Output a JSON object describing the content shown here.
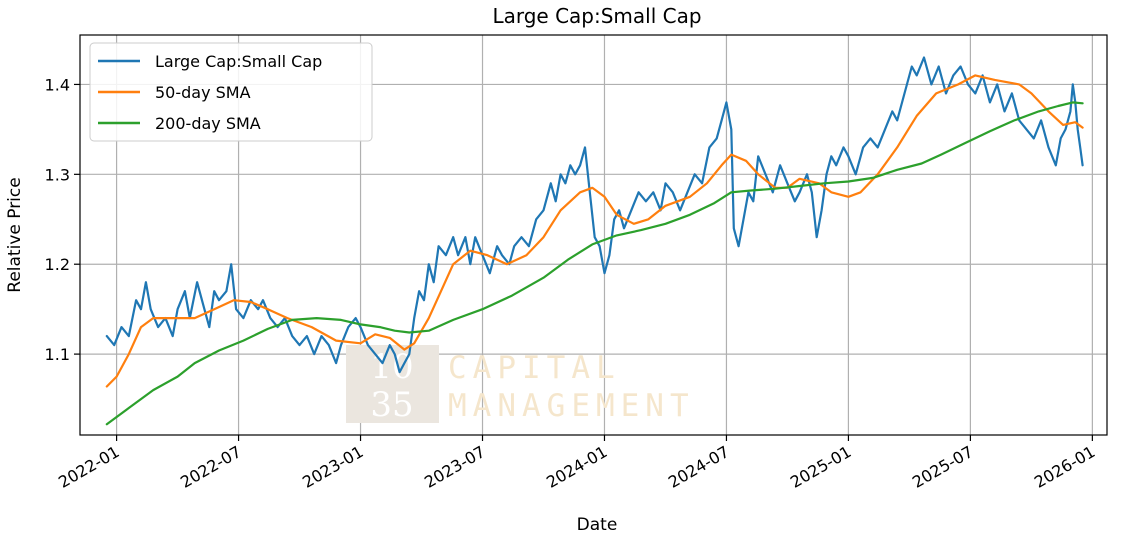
{
  "chart_data": {
    "type": "line",
    "title": "Large Cap:Small Cap",
    "xlabel": "Date",
    "ylabel": "Relative Price",
    "xlim": [
      2021.85,
      2026.06
    ],
    "ylim": [
      1.01,
      1.455
    ],
    "x_ticks": [
      {
        "label": "2022-01",
        "value": 2022.0
      },
      {
        "label": "2022-07",
        "value": 2022.5
      },
      {
        "label": "2023-01",
        "value": 2023.0
      },
      {
        "label": "2023-07",
        "value": 2023.5
      },
      {
        "label": "2024-01",
        "value": 2024.0
      },
      {
        "label": "2024-07",
        "value": 2024.5
      },
      {
        "label": "2025-01",
        "value": 2025.0
      },
      {
        "label": "2025-07",
        "value": 2025.5
      },
      {
        "label": "2026-01",
        "value": 2026.0
      }
    ],
    "y_ticks": [
      {
        "label": "1.1",
        "value": 1.1
      },
      {
        "label": "1.2",
        "value": 1.2
      },
      {
        "label": "1.3",
        "value": 1.3
      },
      {
        "label": "1.4",
        "value": 1.4
      }
    ],
    "grid": true,
    "legend_position": "top-left",
    "series": [
      {
        "name": "Large Cap:Small Cap",
        "color": "#1f77b4",
        "points": [
          [
            2021.96,
            1.12
          ],
          [
            2021.99,
            1.11
          ],
          [
            2022.02,
            1.13
          ],
          [
            2022.05,
            1.12
          ],
          [
            2022.08,
            1.16
          ],
          [
            2022.1,
            1.15
          ],
          [
            2022.12,
            1.18
          ],
          [
            2022.14,
            1.15
          ],
          [
            2022.17,
            1.13
          ],
          [
            2022.2,
            1.14
          ],
          [
            2022.23,
            1.12
          ],
          [
            2022.25,
            1.15
          ],
          [
            2022.28,
            1.17
          ],
          [
            2022.3,
            1.14
          ],
          [
            2022.33,
            1.18
          ],
          [
            2022.36,
            1.15
          ],
          [
            2022.38,
            1.13
          ],
          [
            2022.4,
            1.17
          ],
          [
            2022.42,
            1.16
          ],
          [
            2022.45,
            1.17
          ],
          [
            2022.47,
            1.2
          ],
          [
            2022.49,
            1.15
          ],
          [
            2022.52,
            1.14
          ],
          [
            2022.55,
            1.16
          ],
          [
            2022.58,
            1.15
          ],
          [
            2022.6,
            1.16
          ],
          [
            2022.63,
            1.14
          ],
          [
            2022.66,
            1.13
          ],
          [
            2022.69,
            1.14
          ],
          [
            2022.72,
            1.12
          ],
          [
            2022.75,
            1.11
          ],
          [
            2022.78,
            1.12
          ],
          [
            2022.81,
            1.1
          ],
          [
            2022.84,
            1.12
          ],
          [
            2022.87,
            1.11
          ],
          [
            2022.9,
            1.09
          ],
          [
            2022.92,
            1.11
          ],
          [
            2022.95,
            1.13
          ],
          [
            2022.98,
            1.14
          ],
          [
            2023.0,
            1.13
          ],
          [
            2023.03,
            1.11
          ],
          [
            2023.06,
            1.1
          ],
          [
            2023.09,
            1.09
          ],
          [
            2023.12,
            1.11
          ],
          [
            2023.14,
            1.1
          ],
          [
            2023.16,
            1.08
          ],
          [
            2023.18,
            1.09
          ],
          [
            2023.2,
            1.1
          ],
          [
            2023.22,
            1.14
          ],
          [
            2023.24,
            1.17
          ],
          [
            2023.26,
            1.16
          ],
          [
            2023.28,
            1.2
          ],
          [
            2023.3,
            1.18
          ],
          [
            2023.32,
            1.22
          ],
          [
            2023.35,
            1.21
          ],
          [
            2023.38,
            1.23
          ],
          [
            2023.4,
            1.21
          ],
          [
            2023.43,
            1.23
          ],
          [
            2023.45,
            1.2
          ],
          [
            2023.47,
            1.23
          ],
          [
            2023.5,
            1.21
          ],
          [
            2023.53,
            1.19
          ],
          [
            2023.56,
            1.22
          ],
          [
            2023.58,
            1.21
          ],
          [
            2023.61,
            1.2
          ],
          [
            2023.63,
            1.22
          ],
          [
            2023.66,
            1.23
          ],
          [
            2023.69,
            1.22
          ],
          [
            2023.72,
            1.25
          ],
          [
            2023.75,
            1.26
          ],
          [
            2023.78,
            1.29
          ],
          [
            2023.8,
            1.27
          ],
          [
            2023.82,
            1.3
          ],
          [
            2023.84,
            1.29
          ],
          [
            2023.86,
            1.31
          ],
          [
            2023.88,
            1.3
          ],
          [
            2023.9,
            1.31
          ],
          [
            2023.92,
            1.33
          ],
          [
            2023.94,
            1.28
          ],
          [
            2023.96,
            1.23
          ],
          [
            2023.98,
            1.22
          ],
          [
            2024.0,
            1.19
          ],
          [
            2024.02,
            1.21
          ],
          [
            2024.04,
            1.25
          ],
          [
            2024.06,
            1.26
          ],
          [
            2024.08,
            1.24
          ],
          [
            2024.11,
            1.26
          ],
          [
            2024.14,
            1.28
          ],
          [
            2024.17,
            1.27
          ],
          [
            2024.2,
            1.28
          ],
          [
            2024.23,
            1.26
          ],
          [
            2024.25,
            1.29
          ],
          [
            2024.28,
            1.28
          ],
          [
            2024.31,
            1.26
          ],
          [
            2024.34,
            1.28
          ],
          [
            2024.37,
            1.3
          ],
          [
            2024.4,
            1.29
          ],
          [
            2024.43,
            1.33
          ],
          [
            2024.46,
            1.34
          ],
          [
            2024.48,
            1.36
          ],
          [
            2024.5,
            1.38
          ],
          [
            2024.52,
            1.35
          ],
          [
            2024.53,
            1.24
          ],
          [
            2024.55,
            1.22
          ],
          [
            2024.57,
            1.25
          ],
          [
            2024.59,
            1.28
          ],
          [
            2024.61,
            1.27
          ],
          [
            2024.63,
            1.32
          ],
          [
            2024.66,
            1.3
          ],
          [
            2024.69,
            1.28
          ],
          [
            2024.72,
            1.31
          ],
          [
            2024.75,
            1.29
          ],
          [
            2024.78,
            1.27
          ],
          [
            2024.8,
            1.28
          ],
          [
            2024.83,
            1.3
          ],
          [
            2024.85,
            1.28
          ],
          [
            2024.87,
            1.23
          ],
          [
            2024.89,
            1.26
          ],
          [
            2024.91,
            1.3
          ],
          [
            2024.93,
            1.32
          ],
          [
            2024.95,
            1.31
          ],
          [
            2024.98,
            1.33
          ],
          [
            2025.0,
            1.32
          ],
          [
            2025.03,
            1.3
          ],
          [
            2025.06,
            1.33
          ],
          [
            2025.09,
            1.34
          ],
          [
            2025.12,
            1.33
          ],
          [
            2025.15,
            1.35
          ],
          [
            2025.18,
            1.37
          ],
          [
            2025.2,
            1.36
          ],
          [
            2025.23,
            1.39
          ],
          [
            2025.26,
            1.42
          ],
          [
            2025.28,
            1.41
          ],
          [
            2025.31,
            1.43
          ],
          [
            2025.34,
            1.4
          ],
          [
            2025.37,
            1.42
          ],
          [
            2025.4,
            1.39
          ],
          [
            2025.43,
            1.41
          ],
          [
            2025.46,
            1.42
          ],
          [
            2025.49,
            1.4
          ],
          [
            2025.52,
            1.39
          ],
          [
            2025.55,
            1.41
          ],
          [
            2025.58,
            1.38
          ],
          [
            2025.61,
            1.4
          ],
          [
            2025.64,
            1.37
          ],
          [
            2025.67,
            1.39
          ],
          [
            2025.7,
            1.36
          ],
          [
            2025.73,
            1.35
          ],
          [
            2025.76,
            1.34
          ],
          [
            2025.79,
            1.36
          ],
          [
            2025.82,
            1.33
          ],
          [
            2025.85,
            1.31
          ],
          [
            2025.87,
            1.34
          ],
          [
            2025.89,
            1.35
          ],
          [
            2025.91,
            1.37
          ],
          [
            2025.92,
            1.4
          ],
          [
            2025.93,
            1.38
          ],
          [
            2025.94,
            1.35
          ],
          [
            2025.95,
            1.33
          ],
          [
            2025.96,
            1.31
          ]
        ]
      },
      {
        "name": "50-day SMA",
        "color": "#ff7f0e",
        "points": [
          [
            2021.96,
            1.064
          ],
          [
            2022.0,
            1.075
          ],
          [
            2022.05,
            1.1
          ],
          [
            2022.1,
            1.13
          ],
          [
            2022.15,
            1.14
          ],
          [
            2022.25,
            1.14
          ],
          [
            2022.32,
            1.14
          ],
          [
            2022.4,
            1.15
          ],
          [
            2022.48,
            1.16
          ],
          [
            2022.55,
            1.158
          ],
          [
            2022.62,
            1.15
          ],
          [
            2022.7,
            1.14
          ],
          [
            2022.8,
            1.13
          ],
          [
            2022.9,
            1.115
          ],
          [
            2023.0,
            1.112
          ],
          [
            2023.06,
            1.122
          ],
          [
            2023.12,
            1.118
          ],
          [
            2023.18,
            1.105
          ],
          [
            2023.22,
            1.112
          ],
          [
            2023.28,
            1.14
          ],
          [
            2023.33,
            1.17
          ],
          [
            2023.38,
            1.2
          ],
          [
            2023.45,
            1.215
          ],
          [
            2023.52,
            1.21
          ],
          [
            2023.6,
            1.2
          ],
          [
            2023.68,
            1.21
          ],
          [
            2023.75,
            1.23
          ],
          [
            2023.82,
            1.26
          ],
          [
            2023.9,
            1.28
          ],
          [
            2023.95,
            1.285
          ],
          [
            2024.0,
            1.275
          ],
          [
            2024.05,
            1.255
          ],
          [
            2024.12,
            1.245
          ],
          [
            2024.18,
            1.25
          ],
          [
            2024.25,
            1.265
          ],
          [
            2024.35,
            1.275
          ],
          [
            2024.42,
            1.29
          ],
          [
            2024.48,
            1.31
          ],
          [
            2024.52,
            1.322
          ],
          [
            2024.58,
            1.315
          ],
          [
            2024.63,
            1.3
          ],
          [
            2024.7,
            1.285
          ],
          [
            2024.75,
            1.285
          ],
          [
            2024.8,
            1.295
          ],
          [
            2024.88,
            1.29
          ],
          [
            2024.93,
            1.28
          ],
          [
            2025.0,
            1.275
          ],
          [
            2025.05,
            1.28
          ],
          [
            2025.12,
            1.3
          ],
          [
            2025.2,
            1.33
          ],
          [
            2025.28,
            1.365
          ],
          [
            2025.36,
            1.39
          ],
          [
            2025.45,
            1.4
          ],
          [
            2025.52,
            1.41
          ],
          [
            2025.6,
            1.405
          ],
          [
            2025.7,
            1.4
          ],
          [
            2025.75,
            1.39
          ],
          [
            2025.82,
            1.37
          ],
          [
            2025.88,
            1.355
          ],
          [
            2025.93,
            1.358
          ],
          [
            2025.96,
            1.352
          ]
        ]
      },
      {
        "name": "200-day SMA",
        "color": "#2ca02c",
        "points": [
          [
            2021.96,
            1.022
          ],
          [
            2022.05,
            1.04
          ],
          [
            2022.15,
            1.06
          ],
          [
            2022.25,
            1.075
          ],
          [
            2022.32,
            1.09
          ],
          [
            2022.42,
            1.104
          ],
          [
            2022.52,
            1.115
          ],
          [
            2022.62,
            1.128
          ],
          [
            2022.72,
            1.138
          ],
          [
            2022.82,
            1.14
          ],
          [
            2022.92,
            1.138
          ],
          [
            2023.0,
            1.133
          ],
          [
            2023.08,
            1.13
          ],
          [
            2023.14,
            1.126
          ],
          [
            2023.2,
            1.124
          ],
          [
            2023.28,
            1.126
          ],
          [
            2023.38,
            1.138
          ],
          [
            2023.5,
            1.15
          ],
          [
            2023.62,
            1.165
          ],
          [
            2023.75,
            1.185
          ],
          [
            2023.85,
            1.205
          ],
          [
            2023.95,
            1.222
          ],
          [
            2024.05,
            1.232
          ],
          [
            2024.15,
            1.238
          ],
          [
            2024.25,
            1.245
          ],
          [
            2024.35,
            1.255
          ],
          [
            2024.45,
            1.268
          ],
          [
            2024.52,
            1.28
          ],
          [
            2024.6,
            1.282
          ],
          [
            2024.7,
            1.284
          ],
          [
            2024.8,
            1.287
          ],
          [
            2024.9,
            1.29
          ],
          [
            2025.0,
            1.292
          ],
          [
            2025.1,
            1.296
          ],
          [
            2025.2,
            1.305
          ],
          [
            2025.3,
            1.312
          ],
          [
            2025.38,
            1.322
          ],
          [
            2025.48,
            1.335
          ],
          [
            2025.58,
            1.348
          ],
          [
            2025.68,
            1.36
          ],
          [
            2025.78,
            1.37
          ],
          [
            2025.86,
            1.376
          ],
          [
            2025.92,
            1.38
          ],
          [
            2025.96,
            1.379
          ]
        ]
      }
    ]
  },
  "watermark": {
    "line1": "10",
    "line2": "35",
    "word1": "CAPITAL",
    "word2": "MANAGEMENT"
  }
}
